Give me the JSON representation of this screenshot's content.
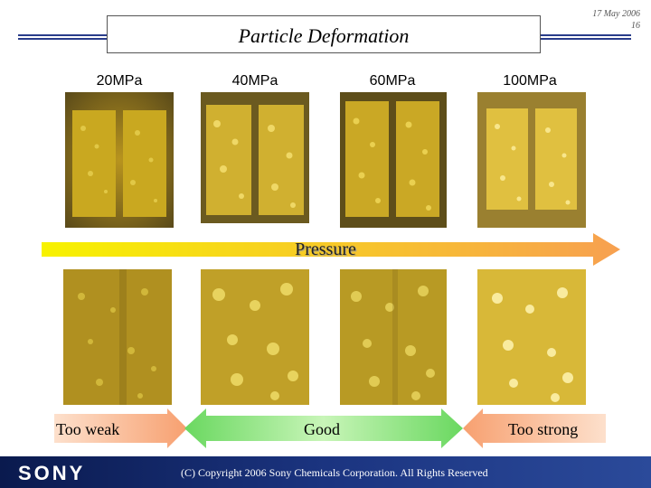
{
  "slide": {
    "title": "Particle Deformation",
    "date": "17 May 2006",
    "page_number": "16"
  },
  "pressures": [
    "20MPa",
    "40MPa",
    "60MPa",
    "100MPa"
  ],
  "pressure_arrow_label": "Pressure",
  "quality_labels": {
    "weak": "Too weak",
    "good": "Good",
    "strong": "Too strong"
  },
  "colors": {
    "header_line": "#2a3d8a",
    "arrow_start": "#f7f200",
    "arrow_end": "#f7a050",
    "good_green": "#7ae070",
    "warn_orange": "#f7b080",
    "footer_blue": "#1b3480"
  },
  "footer": {
    "logo": "SONY",
    "copyright": "(C) Copyright 2006 Sony Chemicals Corporation. All Rights Reserved"
  }
}
